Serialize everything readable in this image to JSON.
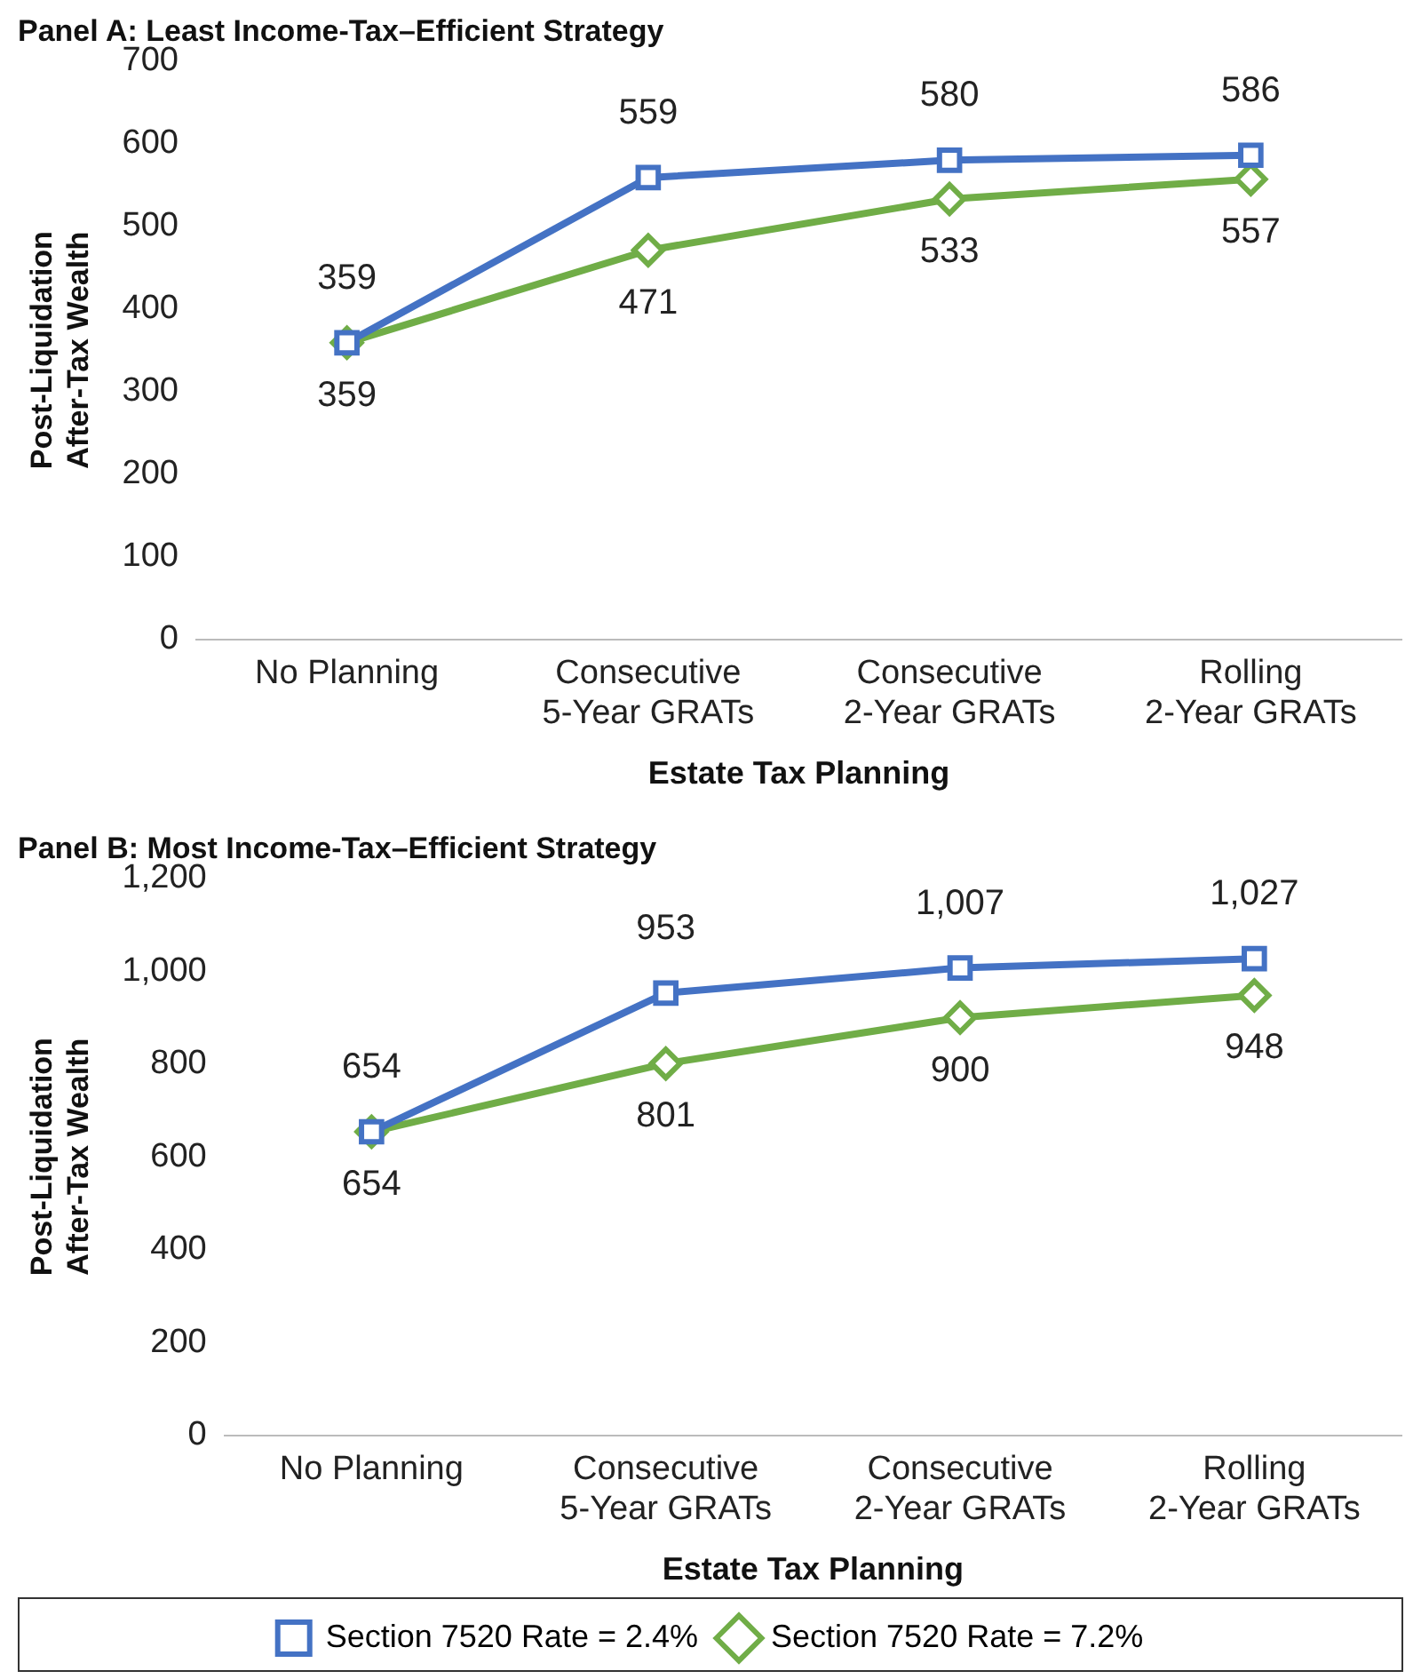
{
  "chart_data": [
    {
      "type": "line",
      "title": "Panel A: Least Income-Tax–Efficient Strategy",
      "xlabel": "Estate Tax Planning",
      "ylabel": "Post-Liquidation\nAfter-Tax Wealth",
      "categories": [
        "No Planning",
        "Consecutive\n5-Year GRATs",
        "Consecutive\n2-Year GRATs",
        "Rolling\n2-Year GRATs"
      ],
      "series": [
        {
          "color": "#4472c4",
          "marker": "square",
          "values": [
            359,
            559,
            580,
            586
          ]
        },
        {
          "color": "#70ad47",
          "marker": "diamond",
          "values": [
            359,
            471,
            533,
            557
          ]
        }
      ],
      "ylim": [
        0,
        700
      ],
      "yticks": [
        0,
        100,
        200,
        300,
        400,
        500,
        600,
        700
      ],
      "grid": false,
      "legend": false,
      "data_labels": true
    },
    {
      "type": "line",
      "title": "Panel B: Most Income-Tax–Efficient Strategy",
      "xlabel": "Estate Tax Planning",
      "ylabel": "Post-Liquidation\nAfter-Tax Wealth",
      "categories": [
        "No Planning",
        "Consecutive\n5-Year GRATs",
        "Consecutive\n2-Year GRATs",
        "Rolling\n2-Year GRATs"
      ],
      "series": [
        {
          "name": "Section 7520 Rate = 2.4%",
          "color": "#4472c4",
          "marker": "square",
          "values": [
            654,
            953,
            1007,
            1027
          ],
          "value_labels": [
            "654",
            "953",
            "1,007",
            "1,027"
          ]
        },
        {
          "name": "Section 7520 Rate = 7.2%",
          "color": "#70ad47",
          "marker": "diamond",
          "values": [
            654,
            801,
            900,
            948
          ],
          "value_labels": [
            "654",
            "801",
            "900",
            "948"
          ]
        }
      ],
      "ylim": [
        0,
        1200
      ],
      "yticks": [
        0,
        200,
        400,
        600,
        800,
        {
          "value": 1000,
          "label": "1,000"
        },
        {
          "value": 1200,
          "label": "1,200"
        }
      ],
      "grid": false,
      "legend": "bottom"
    }
  ]
}
